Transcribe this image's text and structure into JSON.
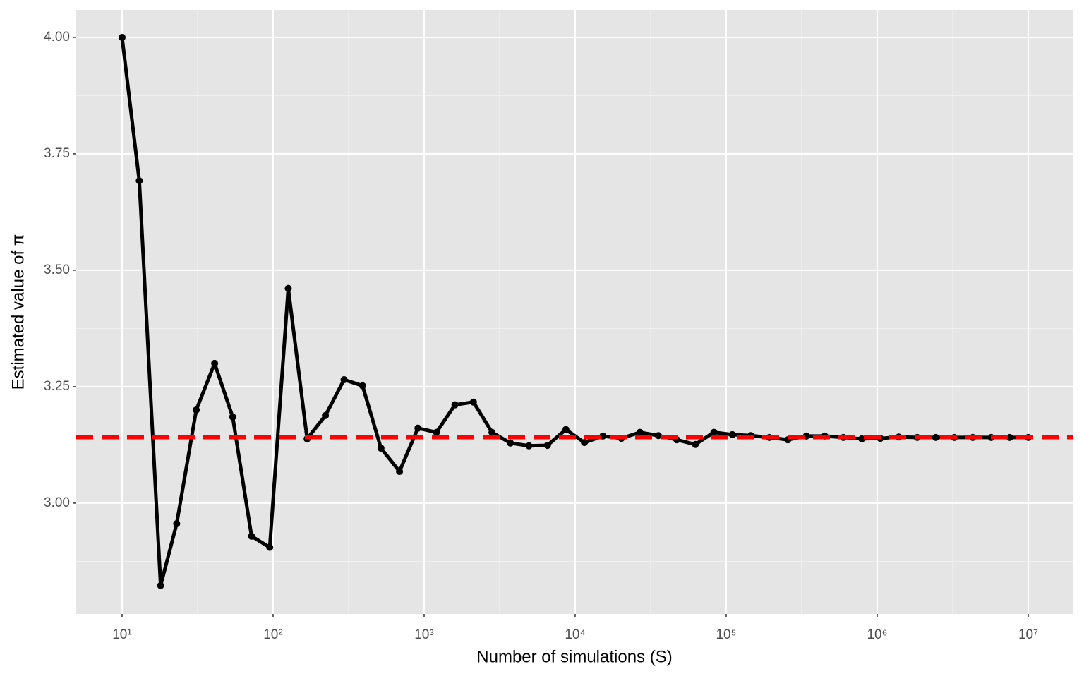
{
  "chart_data": {
    "type": "line",
    "x_label": "Number of simulations (S)",
    "y_label": "Estimated value of π",
    "x": [
      10,
      13,
      18,
      23,
      31,
      41,
      54,
      72,
      95,
      126,
      168,
      222,
      295,
      391,
      518,
      687,
      910,
      1207,
      1600,
      2121,
      2812,
      3728,
      4942,
      6551,
      8685,
      11514,
      15264,
      20236,
      26827,
      35565,
      47149,
      62506,
      82864,
      109854,
      145635,
      193070,
      255955,
      339322,
      449843,
      596362,
      790604,
      1048113,
      1389495,
      1842070,
      2442053,
      3237458,
      4291934,
      5689866,
      7543120,
      10000000
    ],
    "values": [
      4.0,
      3.692,
      2.823,
      2.956,
      3.2,
      3.3,
      3.185,
      2.929,
      2.905,
      3.461,
      3.138,
      3.188,
      3.265,
      3.252,
      3.118,
      3.068,
      3.161,
      3.152,
      3.211,
      3.217,
      3.152,
      3.129,
      3.123,
      3.124,
      3.158,
      3.13,
      3.144,
      3.139,
      3.152,
      3.145,
      3.136,
      3.126,
      3.152,
      3.147,
      3.145,
      3.141,
      3.136,
      3.144,
      3.144,
      3.141,
      3.138,
      3.139,
      3.142,
      3.141,
      3.141,
      3.141,
      3.141,
      3.141,
      3.141,
      3.141
    ],
    "color": "#000000",
    "hline": 3.14159,
    "hline_color": "#ff0000",
    "xlog": true,
    "xlim": [
      4.97,
      19700000
    ],
    "xticks": [
      {
        "value": 10,
        "label": "10¹"
      },
      {
        "value": 100,
        "label": "10²"
      },
      {
        "value": 1000,
        "label": "10³"
      },
      {
        "value": 10000,
        "label": "10⁴"
      },
      {
        "value": 100000,
        "label": "10⁵"
      },
      {
        "value": 1000000,
        "label": "10⁶"
      },
      {
        "value": 10000000,
        "label": "10⁷"
      }
    ],
    "xminor": [
      31.62,
      316.2,
      3162,
      31623,
      316228,
      3162278
    ],
    "ylim": [
      2.762,
      4.059
    ],
    "yticks": [
      {
        "value": 3,
        "label": "3.00"
      },
      {
        "value": 3.25,
        "label": "3.25"
      },
      {
        "value": 3.5,
        "label": "3.50"
      },
      {
        "value": 3.75,
        "label": "3.75"
      },
      {
        "value": 4,
        "label": "4.00"
      }
    ],
    "yminor": [
      2.875,
      3.125,
      3.375,
      3.625,
      3.875
    ],
    "grid": true
  }
}
